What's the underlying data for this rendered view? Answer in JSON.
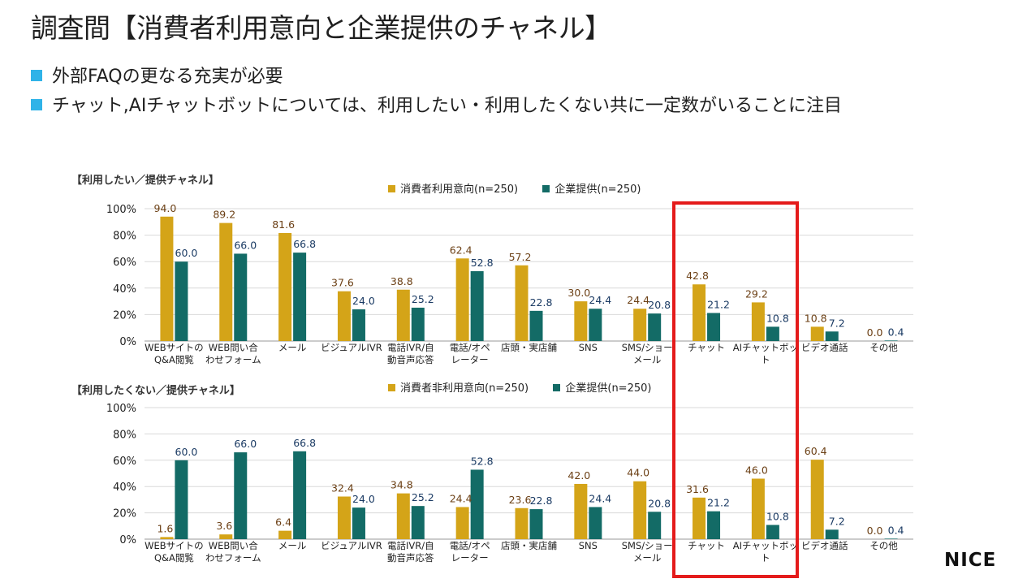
{
  "header": {
    "title": "調査間【消費者利用意向と企業提供のチャネル】",
    "bullets": [
      "外部FAQの更なる充実が必要",
      "チャット,AIチャットボットについては、利用したい・利用したくない共に一定数がいることに注目"
    ]
  },
  "colors": {
    "series_a": "#d4a418",
    "series_b": "#136b66",
    "label_a": "#6b3f14",
    "label_b": "#1a3a63",
    "bullet": "#2fb3e8",
    "highlight": "#e41b1b"
  },
  "brand": {
    "logo": "NICE"
  },
  "chart_data": [
    {
      "type": "bar",
      "title": "【利用したい／提供チャネル】",
      "categories": [
        "WEBサイトの\nQ&A閲覧",
        "WEB問い合\nわせフォーム",
        "メール",
        "ビジュアルIVR",
        "電話IVR/自\n動音声応答",
        "電話/オペ\nレーター",
        "店頭・実店舗",
        "SNS",
        "SMS/ショー\nメール",
        "チャット",
        "AIチャットボッ\nト",
        "ビデオ通話",
        "その他"
      ],
      "series": [
        {
          "name": "消費者利用意向(n=250)",
          "values": [
            94.0,
            89.2,
            81.6,
            37.6,
            38.8,
            62.4,
            57.2,
            30.0,
            24.4,
            42.8,
            29.2,
            10.8,
            0.0
          ]
        },
        {
          "name": "企業提供(n=250)",
          "values": [
            60.0,
            66.0,
            66.8,
            24.0,
            25.2,
            52.8,
            22.8,
            24.4,
            20.8,
            21.2,
            10.8,
            7.2,
            0.4
          ]
        }
      ],
      "ylim": [
        0,
        100
      ],
      "yticks": [
        "0%",
        "20%",
        "40%",
        "60%",
        "80%",
        "100%"
      ],
      "grid": true
    },
    {
      "type": "bar",
      "title": "【利用したくない／提供チャネル】",
      "categories": [
        "WEBサイトの\nQ&A閲覧",
        "WEB問い合\nわせフォーム",
        "メール",
        "ビジュアルIVR",
        "電話IVR/自\n動音声応答",
        "電話/オペ\nレーター",
        "店頭・実店舗",
        "SNS",
        "SMS/ショー\nメール",
        "チャット",
        "AIチャットボッ\nト",
        "ビデオ通話",
        "その他"
      ],
      "series": [
        {
          "name": "消費者非利用意向(n=250)",
          "values": [
            1.6,
            3.6,
            6.4,
            32.4,
            34.8,
            24.4,
            23.6,
            42.0,
            44.0,
            31.6,
            46.0,
            60.4,
            0.0
          ]
        },
        {
          "name": "企業提供(n=250)",
          "values": [
            60.0,
            66.0,
            66.8,
            24.0,
            25.2,
            52.8,
            22.8,
            24.4,
            20.8,
            21.2,
            10.8,
            7.2,
            0.4
          ]
        }
      ],
      "ylim": [
        0,
        100
      ],
      "yticks": [
        "0%",
        "20%",
        "40%",
        "60%",
        "80%",
        "100%"
      ],
      "grid": true
    }
  ]
}
